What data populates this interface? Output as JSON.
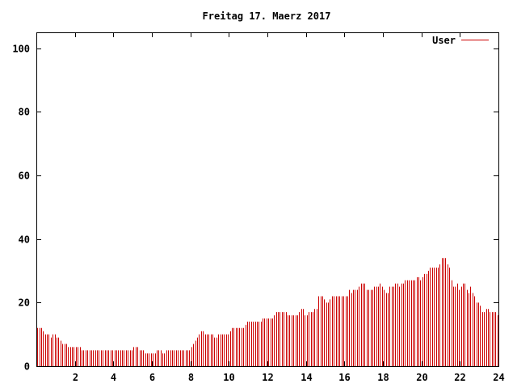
{
  "chart_data": {
    "type": "bar",
    "title": "Freitag 17. Maerz 2017",
    "xlabel": "",
    "ylabel": "",
    "xlim": [
      0,
      24
    ],
    "ylim": [
      0,
      105
    ],
    "x_ticks": [
      "2",
      "4",
      "6",
      "8",
      "10",
      "12",
      "14",
      "16",
      "18",
      "20",
      "22",
      "24"
    ],
    "y_ticks": [
      "0",
      "20",
      "40",
      "60",
      "80",
      "100"
    ],
    "x_tick_values": [
      2,
      4,
      6,
      8,
      10,
      12,
      14,
      16,
      18,
      20,
      22,
      24
    ],
    "y_tick_values": [
      0,
      20,
      40,
      60,
      80,
      100
    ],
    "grid": false,
    "legend_position": "top-right",
    "bar_color": "#cc0000",
    "series": [
      {
        "name": "User",
        "color": "#cc0000",
        "step_hours": 0.1,
        "values": [
          12,
          12,
          12,
          11,
          10,
          10,
          10,
          9,
          10,
          10,
          9,
          9,
          8,
          7,
          7,
          7,
          6,
          6,
          6,
          6,
          6,
          6,
          6,
          5,
          5,
          5,
          5,
          5,
          5,
          5,
          5,
          5,
          5,
          5,
          5,
          5,
          5,
          5,
          5,
          5,
          5,
          5,
          5,
          5,
          5,
          5,
          5,
          5,
          5,
          5,
          6,
          6,
          6,
          5,
          5,
          5,
          4,
          4,
          4,
          4,
          4,
          4,
          5,
          5,
          5,
          4,
          4,
          5,
          5,
          5,
          5,
          5,
          5,
          5,
          5,
          5,
          5,
          5,
          5,
          5,
          6,
          7,
          8,
          9,
          10,
          11,
          11,
          10,
          10,
          10,
          10,
          10,
          9,
          9,
          10,
          10,
          10,
          10,
          10,
          10,
          11,
          12,
          12,
          12,
          12,
          12,
          12,
          12,
          13,
          14,
          14,
          14,
          14,
          14,
          14,
          14,
          14,
          15,
          15,
          15,
          15,
          15,
          15,
          16,
          17,
          17,
          17,
          17,
          17,
          17,
          16,
          16,
          16,
          16,
          16,
          16,
          17,
          18,
          18,
          16,
          16,
          17,
          17,
          17,
          18,
          18,
          22,
          22,
          22,
          21,
          20,
          20,
          21,
          22,
          22,
          22,
          22,
          22,
          22,
          22,
          22,
          22,
          24,
          23,
          24,
          24,
          24,
          25,
          26,
          26,
          26,
          24,
          24,
          24,
          24,
          25,
          25,
          25,
          26,
          25,
          24,
          23,
          23,
          25,
          25,
          25,
          26,
          26,
          25,
          26,
          26,
          27,
          27,
          27,
          27,
          27,
          27,
          28,
          28,
          27,
          28,
          29,
          29,
          30,
          31,
          31,
          31,
          31,
          31,
          32,
          34,
          34,
          34,
          32,
          31,
          27,
          25,
          25,
          26,
          24,
          25,
          26,
          26,
          24,
          23,
          25,
          23,
          22,
          20,
          20,
          19,
          17,
          17,
          18,
          18,
          17,
          17,
          17,
          17,
          16
        ]
      }
    ]
  }
}
